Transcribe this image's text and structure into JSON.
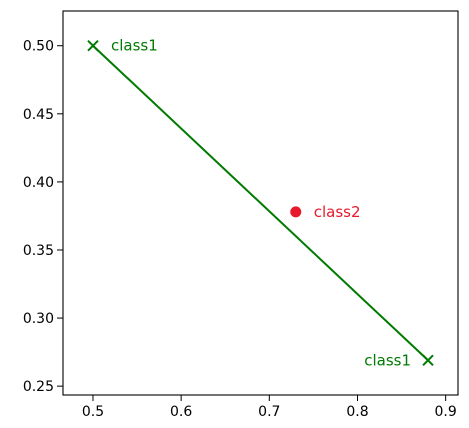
{
  "chart_data": {
    "type": "scatter",
    "title": "",
    "xlabel": "",
    "ylabel": "",
    "xlim": [
      0.466,
      0.914
    ],
    "ylim": [
      0.2435,
      0.5255
    ],
    "xticks": [
      "0.5",
      "0.6",
      "0.7",
      "0.8",
      "0.9"
    ],
    "xtick_values": [
      0.5,
      0.6,
      0.7,
      0.8,
      0.9
    ],
    "yticks": [
      "0.25",
      "0.30",
      "0.35",
      "0.40",
      "0.45",
      "0.50"
    ],
    "ytick_values": [
      0.25,
      0.3,
      0.35,
      0.4,
      0.45,
      0.5
    ],
    "grid": false,
    "legend": "none",
    "series": [
      {
        "marker": "x",
        "color": "#007a00",
        "points": [
          {
            "x": 0.5,
            "y": 0.5,
            "label": "class1"
          },
          {
            "x": 0.88,
            "y": 0.269,
            "label": "class1"
          }
        ],
        "line": true
      },
      {
        "marker": "circle",
        "color": "#e8192c",
        "points": [
          {
            "x": 0.73,
            "y": 0.378,
            "label": "class2"
          }
        ],
        "line": false
      }
    ]
  }
}
